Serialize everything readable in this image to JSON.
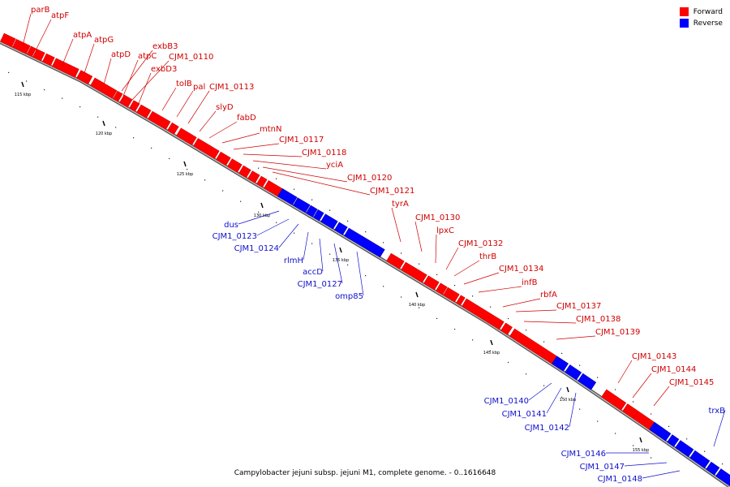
{
  "caption": "Campylobacter jejuni subsp. jejuni M1, complete genome. - 0..1616648",
  "legend": [
    {
      "label": "Forward",
      "color": "#ff0000"
    },
    {
      "label": "Reverse",
      "color": "#0000ff"
    }
  ],
  "ticks": [
    "115 kbp",
    "120 kbp",
    "125 kbp",
    "130 kbp",
    "135 kbp",
    "140 kbp",
    "145 kbp",
    "150 kbp",
    "155 kbp"
  ],
  "colors": {
    "forward": "#ff0000",
    "forward_dark": "#cc0000",
    "forward_label": "#d00000",
    "reverse": "#0000ff",
    "reverse_dark": "#0000aa",
    "reverse_label": "#1010cc",
    "backbone": "#888888"
  },
  "genes": {
    "forward": [
      "parB",
      "atpF",
      "atpA",
      "atpG",
      "atpD",
      "atpC",
      "exbB3",
      "CJM1_0110",
      "exbD3",
      "tolB",
      "pal",
      "CJM1_0113",
      "slyD",
      "fabD",
      "mtnN",
      "CJM1_0117",
      "CJM1_0118",
      "yciA",
      "CJM1_0120",
      "CJM1_0121",
      "tyrA",
      "CJM1_0130",
      "lpxC",
      "CJM1_0132",
      "thrB",
      "CJM1_0134",
      "infB",
      "rbfA",
      "CJM1_0137",
      "CJM1_0138",
      "CJM1_0139",
      "CJM1_0143",
      "CJM1_0144",
      "CJM1_0145"
    ],
    "reverse": [
      "dus",
      "CJM1_0123",
      "CJM1_0124",
      "rlmH",
      "accD",
      "CJM1_0127",
      "omp85",
      "CJM1_0140",
      "CJM1_0141",
      "CJM1_0142",
      "trxB",
      "CJM1_0146",
      "CJM1_0147",
      "CJM1_0148"
    ]
  }
}
